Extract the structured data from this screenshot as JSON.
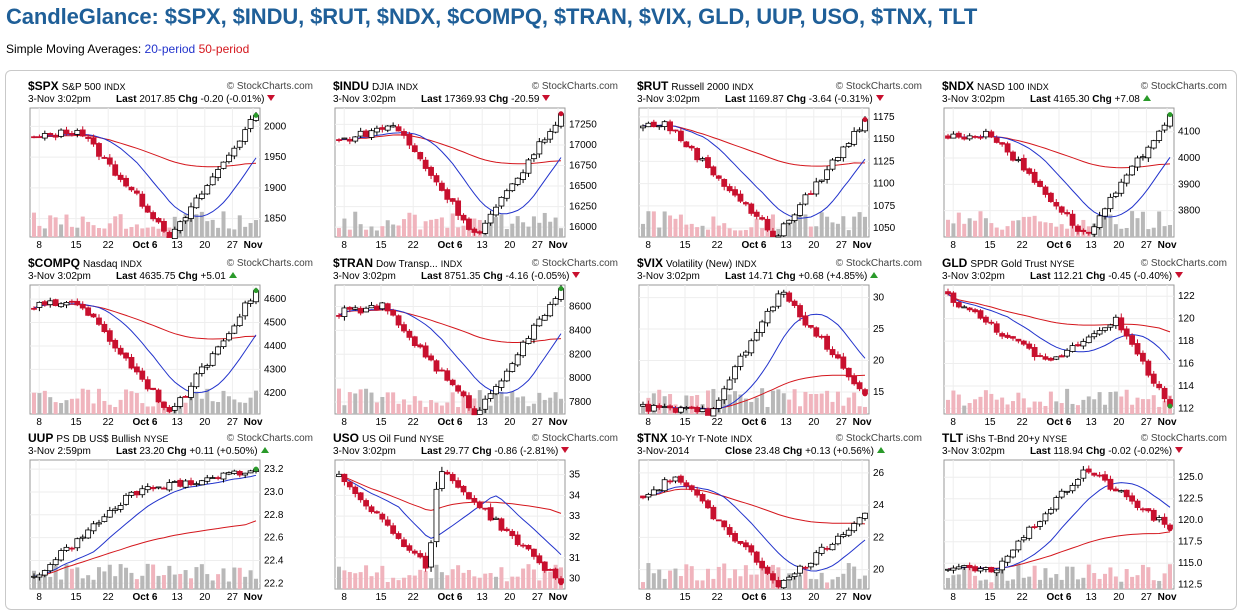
{
  "page": {
    "title": "CandleGlance: $SPX, $INDU, $RUT, $NDX, $COMPQ, $TRAN, $VIX, GLD, UUP, USO, $TNX, TLT",
    "sma_prefix": "Simple Moving Averages:",
    "sma20": "20-period",
    "sma50": "50-period",
    "source": "© StockCharts.com",
    "last_label": "Last",
    "close_label": "Close",
    "chg_label": "Chg",
    "colors": {
      "title": "#1f5f98",
      "sma20": "#2233cc",
      "sma50": "#d4161c",
      "up_fill": "#ffffff",
      "down_fill": "#c8102e",
      "vol_up": "#b8b8b8",
      "vol_down": "#f0b4bd"
    }
  },
  "chart_data": [
    {
      "type": "candlestick",
      "symbol": "$SPX",
      "name": "S&P 500",
      "exchange": "INDX",
      "date": "3-Nov 3:02pm",
      "last_label": "Last",
      "last": "2017.85",
      "chg": "-0.20 (-0.01%)",
      "dir": "down",
      "last_marker": "up",
      "y_ticks": [
        {
          "v": 2000,
          "t": "2000"
        },
        {
          "v": 1950,
          "t": "1950"
        },
        {
          "v": 1900,
          "t": "1900"
        },
        {
          "v": 1850,
          "t": "1850"
        }
      ],
      "ylim": [
        1820,
        2030
      ],
      "x_ticks": [
        "8",
        "15",
        "22",
        "Oct 6",
        "13",
        "20",
        "27",
        "Nov"
      ],
      "start": 1980,
      "end": 2018,
      "low": 1820,
      "low_pos": 0.62,
      "high_pos": 0.2,
      "high": 1995
    },
    {
      "type": "candlestick",
      "symbol": "$INDU",
      "name": "DJIA",
      "exchange": "INDX",
      "date": "3-Nov 3:02pm",
      "last_label": "Last",
      "last": "17369.93",
      "chg": "-20.59",
      "dir": "down",
      "last_marker": "down",
      "y_ticks": [
        {
          "v": 17250,
          "t": "17250"
        },
        {
          "v": 17000,
          "t": "17000"
        },
        {
          "v": 16750,
          "t": "16750"
        },
        {
          "v": 16500,
          "t": "16500"
        },
        {
          "v": 16250,
          "t": "16250"
        },
        {
          "v": 16000,
          "t": "16000"
        }
      ],
      "ylim": [
        15880,
        17450
      ],
      "x_ticks": [
        "8",
        "15",
        "22",
        "Oct 6",
        "13",
        "20",
        "27",
        "Nov"
      ],
      "start": 17050,
      "end": 17380,
      "low": 15880,
      "low_pos": 0.62,
      "high_pos": 0.25,
      "high": 17250
    },
    {
      "type": "candlestick",
      "symbol": "$RUT",
      "name": "Russell 2000",
      "exchange": "INDX",
      "date": "3-Nov 3:02pm",
      "last_label": "Last",
      "last": "1169.87",
      "chg": "-3.64 (-0.31%)",
      "dir": "down",
      "last_marker": "down",
      "y_ticks": [
        {
          "v": 1175,
          "t": "1175"
        },
        {
          "v": 1150,
          "t": "1150"
        },
        {
          "v": 1125,
          "t": "1125"
        },
        {
          "v": 1100,
          "t": "1100"
        },
        {
          "v": 1075,
          "t": "1075"
        },
        {
          "v": 1050,
          "t": "1050"
        }
      ],
      "ylim": [
        1040,
        1185
      ],
      "x_ticks": [
        "8",
        "15",
        "22",
        "Oct 6",
        "13",
        "20",
        "27",
        "Nov"
      ],
      "start": 1165,
      "end": 1172,
      "low": 1040,
      "low_pos": 0.6,
      "high_pos": 0.1,
      "high": 1168
    },
    {
      "type": "candlestick",
      "symbol": "$NDX",
      "name": "NASD 100",
      "exchange": "INDX",
      "date": "3-Nov 3:02pm",
      "last_label": "Last",
      "last": "4165.30",
      "chg": "+7.08",
      "dir": "up",
      "last_marker": "up",
      "y_ticks": [
        {
          "v": 4100,
          "t": "4100"
        },
        {
          "v": 4000,
          "t": "4000"
        },
        {
          "v": 3900,
          "t": "3900"
        },
        {
          "v": 3800,
          "t": "3800"
        }
      ],
      "ylim": [
        3700,
        4190
      ],
      "x_ticks": [
        "8",
        "15",
        "22",
        "Oct 6",
        "13",
        "20",
        "27",
        "Nov"
      ],
      "start": 4080,
      "end": 4165,
      "low": 3700,
      "low_pos": 0.62,
      "high_pos": 0.2,
      "high": 4090
    },
    {
      "type": "candlestick",
      "symbol": "$COMPQ",
      "name": "Nasdaq",
      "exchange": "INDX",
      "date": "3-Nov 3:02pm",
      "last_label": "Last",
      "last": "4635.75",
      "chg": "+5.01",
      "dir": "up",
      "last_marker": "up",
      "y_ticks": [
        {
          "v": 4600,
          "t": "4600"
        },
        {
          "v": 4500,
          "t": "4500"
        },
        {
          "v": 4400,
          "t": "4400"
        },
        {
          "v": 4300,
          "t": "4300"
        },
        {
          "v": 4200,
          "t": "4200"
        }
      ],
      "ylim": [
        4110,
        4660
      ],
      "x_ticks": [
        "8",
        "15",
        "22",
        "Oct 6",
        "13",
        "20",
        "27",
        "Nov"
      ],
      "start": 4570,
      "end": 4636,
      "low": 4110,
      "low_pos": 0.62,
      "high_pos": 0.2,
      "high": 4590
    },
    {
      "type": "candlestick",
      "symbol": "$TRAN",
      "name": "Dow Transp...",
      "exchange": "INDX",
      "date": "3-Nov 3:02pm",
      "last_label": "Last",
      "last": "8751.35",
      "chg": "-4.16 (-0.05%)",
      "dir": "down",
      "last_marker": "up",
      "y_ticks": [
        {
          "v": 8600,
          "t": "8600"
        },
        {
          "v": 8400,
          "t": "8400"
        },
        {
          "v": 8200,
          "t": "8200"
        },
        {
          "v": 8000,
          "t": "8000"
        },
        {
          "v": 7800,
          "t": "7800"
        }
      ],
      "ylim": [
        7700,
        8780
      ],
      "x_ticks": [
        "8",
        "15",
        "22",
        "Oct 6",
        "13",
        "20",
        "27",
        "Nov"
      ],
      "start": 8550,
      "end": 8750,
      "low": 7700,
      "low_pos": 0.62,
      "high_pos": 0.2,
      "high": 8600
    },
    {
      "type": "candlestick",
      "symbol": "$VIX",
      "name": "Volatility (New)",
      "exchange": "INDX",
      "date": "3-Nov 3:02pm",
      "last_label": "Last",
      "last": "14.71",
      "chg": "+0.68 (+4.85%)",
      "dir": "up",
      "last_marker": "down",
      "y_ticks": [
        {
          "v": 30,
          "t": "30"
        },
        {
          "v": 25,
          "t": "25"
        },
        {
          "v": 20,
          "t": "20"
        },
        {
          "v": 15,
          "t": "15"
        }
      ],
      "ylim": [
        11.5,
        32
      ],
      "x_ticks": [
        "8",
        "15",
        "22",
        "Oct 6",
        "13",
        "20",
        "27",
        "Nov"
      ],
      "start": 12.5,
      "end": 14.7,
      "low": 11.8,
      "low_pos": 0.3,
      "high_pos": 0.62,
      "high": 31,
      "inverse": true
    },
    {
      "type": "candlestick",
      "symbol": "GLD",
      "name": "SPDR Gold Trust",
      "exchange": "NYSE",
      "date": "3-Nov 3:02pm",
      "last_label": "Last",
      "last": "112.21",
      "chg": "-0.45 (-0.40%)",
      "dir": "down",
      "last_marker": "up",
      "y_ticks": [
        {
          "v": 122,
          "t": "122"
        },
        {
          "v": 120,
          "t": "120"
        },
        {
          "v": 118,
          "t": "118"
        },
        {
          "v": 116,
          "t": "116"
        },
        {
          "v": 114,
          "t": "114"
        },
        {
          "v": 112,
          "t": "112"
        }
      ],
      "ylim": [
        111.5,
        123
      ],
      "x_ticks": [
        "8",
        "15",
        "22",
        "Oct 6",
        "13",
        "20",
        "27",
        "Nov"
      ],
      "start": 122,
      "end": 112.2,
      "low": 116,
      "low_pos": 0.45,
      "high_pos": 0.75,
      "high": 120,
      "trend": "down"
    },
    {
      "type": "candlestick",
      "symbol": "UUP",
      "name": "PS DB US$ Bullish",
      "exchange": "NYSE",
      "date": "3-Nov 2:59pm",
      "last_label": "Last",
      "last": "23.20",
      "chg": "+0.11 (+0.50%)",
      "dir": "up",
      "last_marker": "up",
      "y_ticks": [
        {
          "v": 23.2,
          "t": "23.2"
        },
        {
          "v": 23.0,
          "t": "23.0"
        },
        {
          "v": 22.8,
          "t": "22.8"
        },
        {
          "v": 22.6,
          "t": "22.6"
        },
        {
          "v": 22.4,
          "t": "22.4"
        },
        {
          "v": 22.2,
          "t": "22.2"
        }
      ],
      "ylim": [
        22.15,
        23.28
      ],
      "x_ticks": [
        "8",
        "15",
        "22",
        "Oct 6",
        "13",
        "20",
        "27",
        "Nov"
      ],
      "start": 22.25,
      "end": 23.2,
      "low": 22.25,
      "low_pos": 0.0,
      "high_pos": 0.45,
      "high": 23.0,
      "trend": "up"
    },
    {
      "type": "candlestick",
      "symbol": "USO",
      "name": "US Oil Fund",
      "exchange": "NYSE",
      "date": "3-Nov 3:02pm",
      "last_label": "Last",
      "last": "29.77",
      "chg": "-0.86 (-2.81%)",
      "dir": "down",
      "last_marker": "down",
      "y_ticks": [
        {
          "v": 35,
          "t": "35"
        },
        {
          "v": 34,
          "t": "34"
        },
        {
          "v": 33,
          "t": "33"
        },
        {
          "v": 32,
          "t": "32"
        },
        {
          "v": 31,
          "t": "31"
        },
        {
          "v": 30,
          "t": "30"
        }
      ],
      "ylim": [
        29.5,
        35.7
      ],
      "x_ticks": [
        "8",
        "15",
        "22",
        "Oct 6",
        "13",
        "20",
        "27",
        "Nov"
      ],
      "start": 35,
      "end": 29.8,
      "low": 30.5,
      "low_pos": 0.4,
      "high_pos": 0.45,
      "high": 35.3,
      "trend": "down"
    },
    {
      "type": "candlestick",
      "symbol": "$TNX",
      "name": "10-Yr T-Note",
      "exchange": "INDX",
      "date": "3-Nov-2014",
      "last_label": "Close",
      "last": "23.48",
      "chg": "+0.13 (+0.56%)",
      "dir": "up",
      "last_marker": "none",
      "y_ticks": [
        {
          "v": 26,
          "t": "26"
        },
        {
          "v": 24,
          "t": "24"
        },
        {
          "v": 22,
          "t": "22"
        },
        {
          "v": 20,
          "t": "20"
        }
      ],
      "ylim": [
        18.8,
        26.8
      ],
      "x_ticks": [
        "8",
        "15",
        "22",
        "Oct 6",
        "13",
        "20",
        "27",
        "Nov"
      ],
      "start": 24.5,
      "end": 23.5,
      "low": 19.0,
      "low_pos": 0.62,
      "high_pos": 0.15,
      "high": 25.8
    },
    {
      "type": "candlestick",
      "symbol": "TLT",
      "name": "iShs T-Bnd 20+y",
      "exchange": "NYSE",
      "date": "3-Nov 3:02pm",
      "last_label": "Last",
      "last": "118.94",
      "chg": "-0.02 (-0.02%)",
      "dir": "down",
      "last_marker": "down",
      "y_ticks": [
        {
          "v": 125,
          "t": "125.0"
        },
        {
          "v": 122.5,
          "t": "122.5"
        },
        {
          "v": 120,
          "t": "120.0"
        },
        {
          "v": 117.5,
          "t": "117.5"
        },
        {
          "v": 115,
          "t": "115.0"
        },
        {
          "v": 112.5,
          "t": "112.5"
        }
      ],
      "ylim": [
        112,
        127
      ],
      "x_ticks": [
        "8",
        "15",
        "22",
        "Oct 6",
        "13",
        "20",
        "27",
        "Nov"
      ],
      "start": 114.5,
      "end": 119,
      "low": 114,
      "low_pos": 0.2,
      "high_pos": 0.62,
      "high": 126,
      "inverse": true
    }
  ]
}
